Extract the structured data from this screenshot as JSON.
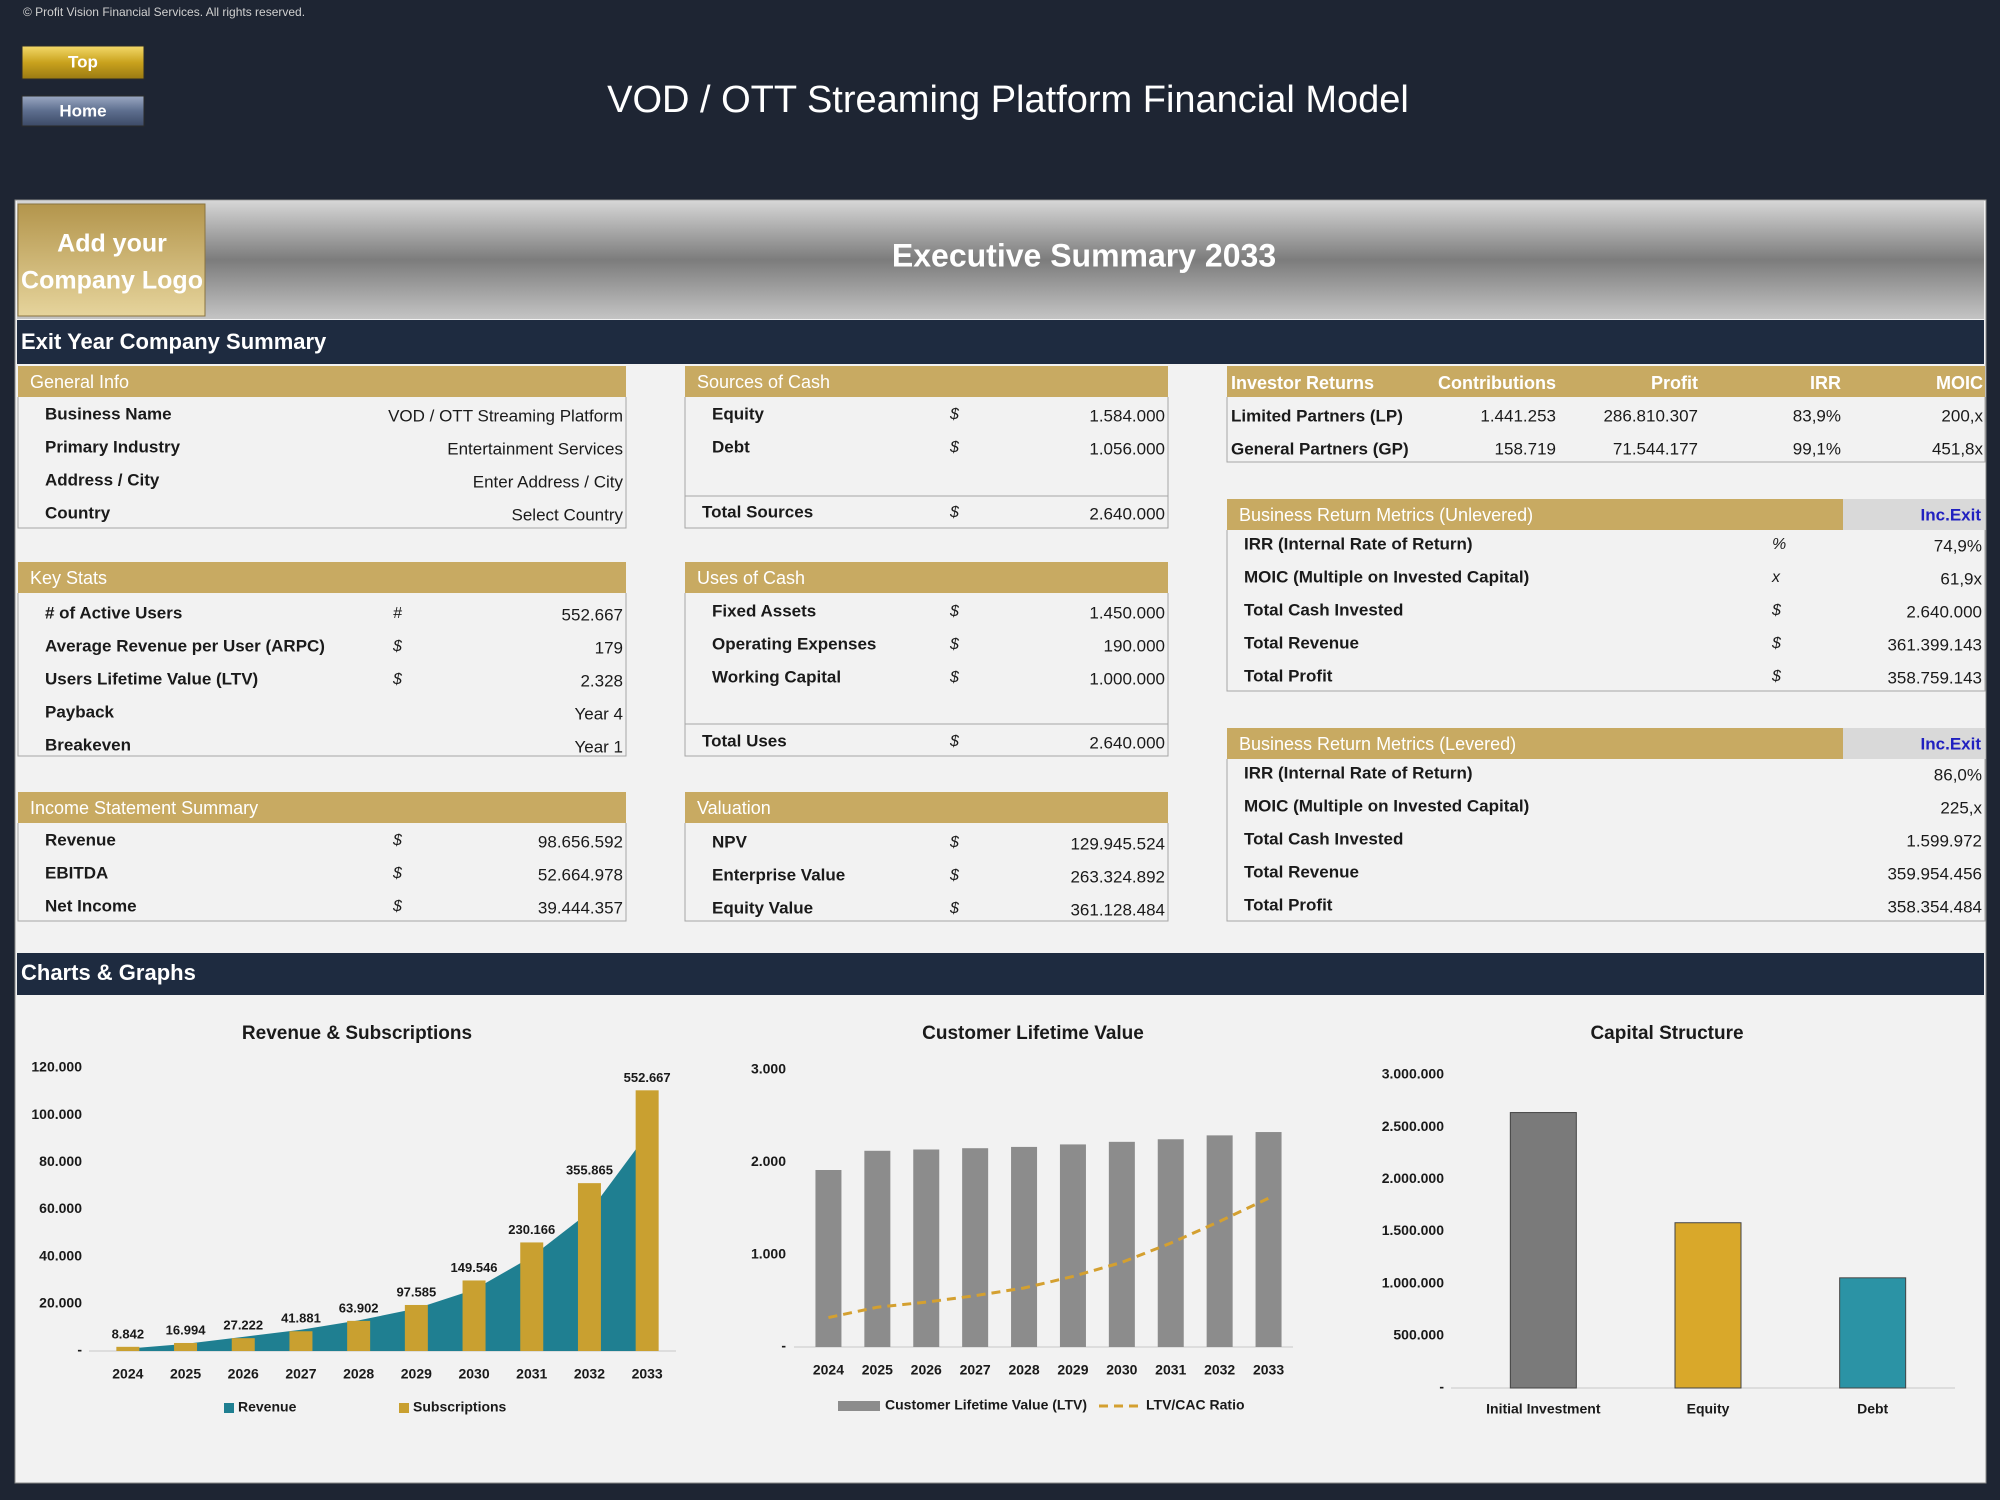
{
  "copyright": "© Profit Vision Financial Services. All rights reserved.",
  "buttons": [
    "Top",
    "Home"
  ],
  "title": "VOD / OTT Streaming Platform Financial Model",
  "logo": [
    "Add your",
    "Company Logo"
  ],
  "summary_title": "Executive Summary 2033",
  "section_summary": "Exit Year Company Summary",
  "general_info": {
    "title": "General Info",
    "rows": [
      {
        "label": "Business Name",
        "value": "VOD / OTT Streaming Platform"
      },
      {
        "label": "Primary Industry",
        "value": "Entertainment Services"
      },
      {
        "label": "Address / City",
        "value": "Enter Address / City"
      },
      {
        "label": "Country",
        "value": "Select Country"
      }
    ]
  },
  "key_stats": {
    "title": "Key Stats",
    "rows": [
      {
        "label": "# of Active Users",
        "unit": "#",
        "value": "552.667"
      },
      {
        "label": "Average Revenue per User (ARPC)",
        "unit": "$",
        "value": "179"
      },
      {
        "label": "Users Lifetime Value (LTV)",
        "unit": "$",
        "value": "2.328"
      },
      {
        "label": "Payback",
        "value": "Year 4"
      },
      {
        "label": "Breakeven",
        "value": "Year 1"
      }
    ]
  },
  "income_statement": {
    "title": "Income Statement Summary",
    "rows": [
      {
        "label": "Revenue",
        "unit": "$",
        "value": "98.656.592"
      },
      {
        "label": "EBITDA",
        "unit": "$",
        "value": "52.664.978"
      },
      {
        "label": "Net Income",
        "unit": "$",
        "value": "39.444.357"
      }
    ]
  },
  "sources_of_cash": {
    "title": "Sources of Cash",
    "rows": [
      {
        "label": "Equity",
        "unit": "$",
        "value": "1.584.000"
      },
      {
        "label": "Debt",
        "unit": "$",
        "value": "1.056.000"
      }
    ],
    "total": {
      "label": "Total Sources",
      "unit": "$",
      "value": "2.640.000"
    }
  },
  "uses_of_cash": {
    "title": "Uses of Cash",
    "rows": [
      {
        "label": "Fixed Assets",
        "unit": "$",
        "value": "1.450.000"
      },
      {
        "label": "Operating Expenses",
        "unit": "$",
        "value": "190.000"
      },
      {
        "label": "Working Capital",
        "unit": "$",
        "value": "1.000.000"
      }
    ],
    "total": {
      "label": "Total Uses",
      "unit": "$",
      "value": "2.640.000"
    }
  },
  "valuation": {
    "title": "Valuation",
    "rows": [
      {
        "label": "NPV",
        "unit": "$",
        "value": "129.945.524"
      },
      {
        "label": "Enterprise Value",
        "unit": "$",
        "value": "263.324.892"
      },
      {
        "label": "Equity Value",
        "unit": "$",
        "value": "361.128.484"
      }
    ]
  },
  "investor_returns": {
    "columns": [
      "Investor Returns",
      "Contributions",
      "Profit",
      "IRR",
      "MOIC"
    ],
    "rows": [
      [
        "Limited Partners (LP)",
        "1.441.253",
        "286.810.307",
        "83,9%",
        "200,x"
      ],
      [
        "General Partners (GP)",
        "158.719",
        "71.544.177",
        "99,1%",
        "451,8x"
      ]
    ]
  },
  "unlevered": {
    "title": "Business Return Metrics (Unlevered)",
    "tag": "Inc.Exit",
    "rows": [
      {
        "label": "IRR (Internal Rate of Return)",
        "unit": "%",
        "value": "74,9%"
      },
      {
        "label": "MOIC (Multiple on Invested Capital)",
        "unit": "x",
        "value": "61,9x"
      },
      {
        "label": "Total Cash Invested",
        "unit": "$",
        "value": "2.640.000"
      },
      {
        "label": "Total Revenue",
        "unit": "$",
        "value": "361.399.143"
      },
      {
        "label": "Total Profit",
        "unit": "$",
        "value": "358.759.143"
      }
    ]
  },
  "levered": {
    "title": "Business Return Metrics (Levered)",
    "tag": "Inc.Exit",
    "rows": [
      {
        "label": "IRR (Internal Rate of Return)",
        "value": "86,0%"
      },
      {
        "label": "MOIC (Multiple on Invested Capital)",
        "value": "225,x"
      },
      {
        "label": "Total Cash Invested",
        "value": "1.599.972"
      },
      {
        "label": "Total Revenue",
        "value": "359.954.456"
      },
      {
        "label": "Total Profit",
        "value": "358.354.484"
      }
    ]
  },
  "section_charts": "Charts & Graphs",
  "charts": [
    {
      "type": "combo",
      "title": "Revenue & Subscriptions",
      "categories": [
        "2024",
        "2025",
        "2026",
        "2027",
        "2028",
        "2029",
        "2030",
        "2031",
        "2032",
        "2033"
      ],
      "series": [
        {
          "name": "Revenue",
          "type": "area",
          "color": "#1f7f91",
          "values": [
            1000,
            3000,
            6000,
            9000,
            13000,
            18000,
            26000,
            40000,
            59000,
            92000
          ]
        },
        {
          "name": "Subscriptions",
          "type": "bar",
          "axis": "y2",
          "color": "#c9a030",
          "values": [
            8842,
            16994,
            27222,
            41881,
            63902,
            97585,
            149546,
            230166,
            355865,
            552667
          ],
          "value_labels": [
            "8.842",
            "16.994",
            "27.222",
            "41.881",
            "63.902",
            "97.585",
            "149.546",
            "230.166",
            "355.865",
            "552.667"
          ]
        }
      ],
      "ylim": [
        0,
        120000
      ],
      "yticks": [
        {
          "value": 0,
          "label": "-"
        },
        {
          "value": 20000,
          "label": "20.000"
        },
        {
          "value": 40000,
          "label": "40.000"
        },
        {
          "value": 60000,
          "label": "60.000"
        },
        {
          "value": 80000,
          "label": "80.000"
        },
        {
          "value": 100000,
          "label": "100.000"
        },
        {
          "value": 120000,
          "label": "120.000"
        }
      ],
      "y2lim": [
        0,
        600000
      ]
    },
    {
      "type": "combo",
      "title": "Customer Lifetime Value",
      "categories": [
        "2024",
        "2025",
        "2026",
        "2027",
        "2028",
        "2029",
        "2030",
        "2031",
        "2032",
        "2033"
      ],
      "series": [
        {
          "name": "Customer Lifetime Value (LTV)",
          "type": "bar",
          "color": "#8c8c8c",
          "values": [
            1917,
            2125,
            2139,
            2153,
            2167,
            2194,
            2222,
            2250,
            2292,
            2328
          ]
        },
        {
          "name": "LTV/CAC Ratio",
          "type": "line",
          "dashed": true,
          "color": "#d4a030",
          "values": [
            319,
            431,
            486,
            556,
            639,
            764,
            917,
            1125,
            1361,
            1611
          ]
        }
      ],
      "ylim": [
        0,
        3000
      ],
      "yticks": [
        {
          "value": 0,
          "label": "-"
        },
        {
          "value": 1000,
          "label": "1.000"
        },
        {
          "value": 2000,
          "label": "2.000"
        },
        {
          "value": 3000,
          "label": "3.000"
        }
      ]
    },
    {
      "type": "bar",
      "title": "Capital Structure",
      "categories": [
        "Initial Investment",
        "Equity",
        "Debt"
      ],
      "values": [
        2640000,
        1584000,
        1056000
      ],
      "colors": [
        "#7a7a7a",
        "#d9a82a",
        "#2b93a5"
      ],
      "ylim": [
        0,
        3000000
      ],
      "yticks": [
        {
          "value": 0,
          "label": "-"
        },
        {
          "value": 500000,
          "label": "500.000"
        },
        {
          "value": 1000000,
          "label": "1.000.000"
        },
        {
          "value": 1500000,
          "label": "1.500.000"
        },
        {
          "value": 2000000,
          "label": "2.000.000"
        },
        {
          "value": 2500000,
          "label": "2.500.000"
        },
        {
          "value": 3000000,
          "label": "3.000.000"
        }
      ]
    }
  ]
}
